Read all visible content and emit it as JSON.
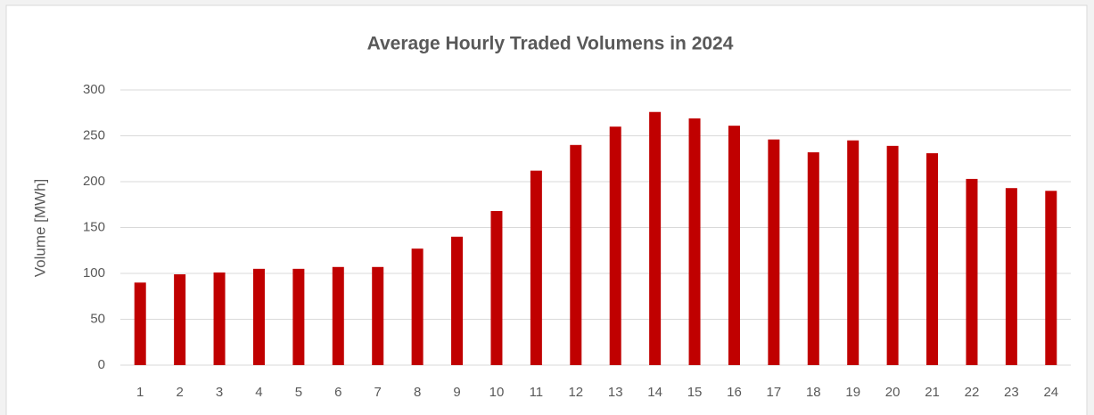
{
  "chart_data": {
    "type": "bar",
    "title": "Average Hourly Traded Volumens in 2024",
    "y_label": "Volume [MWh]",
    "categories": [
      "1",
      "2",
      "3",
      "4",
      "5",
      "6",
      "7",
      "8",
      "9",
      "10",
      "11",
      "12",
      "13",
      "14",
      "15",
      "16",
      "17",
      "18",
      "19",
      "20",
      "21",
      "22",
      "23",
      "24"
    ],
    "values": [
      90,
      99,
      101,
      105,
      105,
      107,
      107,
      127,
      140,
      168,
      212,
      240,
      260,
      276,
      269,
      261,
      246,
      232,
      245,
      239,
      231,
      203,
      193,
      190
    ],
    "color": "#c00000",
    "ylim": [
      0,
      300
    ],
    "yticks": [
      0,
      50,
      100,
      150,
      200,
      250,
      300
    ],
    "grid": true
  }
}
